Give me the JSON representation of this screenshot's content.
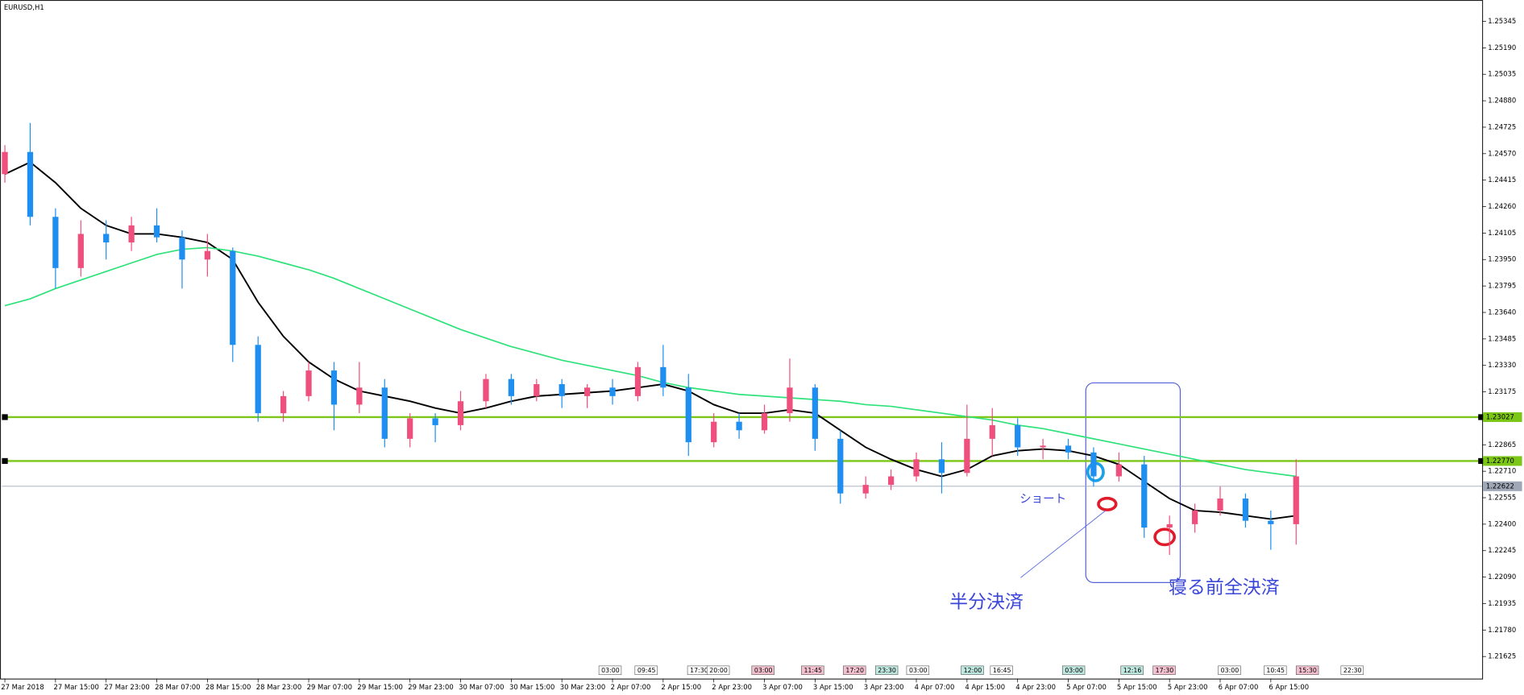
{
  "chart_data": {
    "type": "candlestick",
    "title": "EURUSD,H1",
    "categories": [
      "27 Mar 2018",
      null,
      "27 Mar 15:00",
      null,
      "27 Mar 23:00",
      null,
      "28 Mar 07:00",
      null,
      "28 Mar 15:00",
      null,
      "28 Mar 23:00",
      null,
      "29 Mar 07:00",
      null,
      "29 Mar 15:00",
      null,
      "29 Mar 23:00",
      null,
      "30 Mar 07:00",
      null,
      "30 Mar 15:00",
      null,
      "30 Mar 23:00",
      null,
      "2 Apr 07:00",
      null,
      "2 Apr 15:00",
      null,
      "2 Apr 23:00",
      null,
      "3 Apr 07:00",
      null,
      "3 Apr 15:00",
      null,
      "3 Apr 23:00",
      null,
      "4 Apr 07:00",
      null,
      "4 Apr 15:00",
      null,
      "4 Apr 23:00",
      null,
      "5 Apr 07:00",
      null,
      "5 Apr 15:00",
      null,
      "5 Apr 23:00",
      null,
      "6 Apr 07:00",
      null,
      "6 Apr 15:00",
      null
    ],
    "open": [
      1.2445,
      1.2458,
      1.242,
      1.239,
      1.241,
      1.2405,
      1.2415,
      1.2408,
      1.2395,
      1.24,
      1.2345,
      1.2305,
      1.2315,
      1.233,
      1.231,
      1.232,
      1.229,
      1.2302,
      1.2298,
      1.2312,
      1.2325,
      1.2315,
      1.2322,
      1.2315,
      1.232,
      1.2315,
      1.2332,
      1.232,
      1.2288,
      1.23,
      1.2295,
      1.2305,
      1.232,
      1.229,
      1.2258,
      1.2263,
      1.2268,
      1.2278,
      1.227,
      1.229,
      1.2298,
      1.2285,
      1.2286,
      1.2282,
      1.2268,
      1.2275,
      1.2238,
      1.224,
      1.2248,
      1.2255,
      1.2242,
      1.224
    ],
    "high": [
      1.2462,
      1.2475,
      1.2425,
      1.2418,
      1.2418,
      1.242,
      1.2425,
      1.2412,
      1.241,
      1.2402,
      1.235,
      1.2318,
      1.2335,
      1.2335,
      1.2335,
      1.2325,
      1.2305,
      1.2305,
      1.2318,
      1.2328,
      1.2328,
      1.2325,
      1.2325,
      1.2322,
      1.2325,
      1.2335,
      1.2345,
      1.2328,
      1.2305,
      1.2305,
      1.231,
      1.2337,
      1.2322,
      1.2295,
      1.2268,
      1.2272,
      1.2282,
      1.2288,
      1.231,
      1.2308,
      1.2302,
      1.229,
      1.229,
      1.2285,
      1.2282,
      1.228,
      1.2245,
      1.2252,
      1.2262,
      1.2258,
      1.2248,
      1.2278
    ],
    "low": [
      1.244,
      1.2415,
      1.2378,
      1.2385,
      1.2395,
      1.24,
      1.2405,
      1.2378,
      1.2385,
      1.2335,
      1.23,
      1.23,
      1.2312,
      1.2295,
      1.2305,
      1.2285,
      1.2285,
      1.2288,
      1.2295,
      1.2308,
      1.231,
      1.2312,
      1.2308,
      1.2308,
      1.231,
      1.2312,
      1.2315,
      1.228,
      1.2285,
      1.229,
      1.2293,
      1.23,
      1.2283,
      1.2252,
      1.2255,
      1.226,
      1.2265,
      1.2258,
      1.2268,
      1.228,
      1.228,
      1.2278,
      1.2278,
      1.2262,
      1.2265,
      1.2232,
      1.2222,
      1.2235,
      1.2245,
      1.2238,
      1.2225,
      1.2228
    ],
    "close": [
      1.2458,
      1.242,
      1.239,
      1.241,
      1.2405,
      1.2415,
      1.2408,
      1.2395,
      1.24,
      1.2345,
      1.2305,
      1.2315,
      1.233,
      1.231,
      1.232,
      1.229,
      1.2302,
      1.2298,
      1.2312,
      1.2325,
      1.2315,
      1.2322,
      1.2315,
      1.232,
      1.2315,
      1.2332,
      1.232,
      1.2288,
      1.23,
      1.2295,
      1.2305,
      1.232,
      1.229,
      1.2258,
      1.2263,
      1.2268,
      1.2278,
      1.227,
      1.229,
      1.2298,
      1.2285,
      1.2286,
      1.2282,
      1.2268,
      1.2275,
      1.2238,
      1.224,
      1.2248,
      1.2255,
      1.2242,
      1.224,
      1.2268
    ],
    "up_color": "#ef4f7c",
    "down_color": "#1e8ff0",
    "lines": [
      {
        "color": "#000000",
        "values": [
          1.2445,
          1.2452,
          1.244,
          1.2425,
          1.2415,
          1.241,
          1.241,
          1.2408,
          1.2405,
          1.2395,
          1.237,
          1.235,
          1.2335,
          1.2325,
          1.2318,
          1.2315,
          1.2312,
          1.2308,
          1.2305,
          1.2308,
          1.2312,
          1.2315,
          1.2316,
          1.2317,
          1.2318,
          1.232,
          1.2322,
          1.2318,
          1.231,
          1.2305,
          1.2305,
          1.2307,
          1.2305,
          1.2295,
          1.2285,
          1.2278,
          1.2272,
          1.2268,
          1.2272,
          1.228,
          1.2283,
          1.2284,
          1.2283,
          1.228,
          1.2275,
          1.2265,
          1.2255,
          1.2248,
          1.2247,
          1.2245,
          1.2243,
          1.2245
        ]
      },
      {
        "color": "#2ee27a",
        "values": [
          1.2368,
          1.2372,
          1.2378,
          1.2383,
          1.2388,
          1.2393,
          1.2398,
          1.2401,
          1.2402,
          1.24,
          1.2397,
          1.2393,
          1.2389,
          1.2384,
          1.2378,
          1.2372,
          1.2366,
          1.236,
          1.2354,
          1.2349,
          1.2344,
          1.234,
          1.2336,
          1.2333,
          1.233,
          1.2327,
          1.2323,
          1.232,
          1.2318,
          1.2316,
          1.2315,
          1.2314,
          1.2313,
          1.2312,
          1.231,
          1.2309,
          1.2307,
          1.2305,
          1.2303,
          1.2301,
          1.2298,
          1.2296,
          1.2293,
          1.229,
          1.2287,
          1.2284,
          1.2281,
          1.2278,
          1.2275,
          1.2272,
          1.227,
          1.2268
        ]
      }
    ],
    "hlines": [
      {
        "value": 1.23027,
        "label": "1.23027",
        "color": "#7cc618"
      },
      {
        "value": 1.2277,
        "label": "1.22770",
        "color": "#7cc618"
      },
      {
        "value": 1.22622,
        "label": "1.22622",
        "color": "#a0a8b8"
      }
    ],
    "ylim": [
      1.21496,
      1.2547
    ],
    "yticks": [
      1.25345,
      {
        "value": 1.2519,
        "label": "1.25190"
      },
      1.25035,
      {
        "value": 1.2488,
        "label": "1.24880"
      },
      1.24725,
      {
        "value": 1.2457,
        "label": "1.24570"
      },
      1.24415,
      {
        "value": 1.2426,
        "label": "1.24260"
      },
      1.24105,
      {
        "value": 1.2395,
        "label": "1.23950"
      },
      1.23795,
      {
        "value": 1.2364,
        "label": "1.23640"
      },
      1.23485,
      {
        "value": 1.2333,
        "label": "1.23330"
      },
      1.23175,
      1.22865,
      {
        "value": 1.2271,
        "label": "1.22710"
      },
      1.22555,
      {
        "value": 1.224,
        "label": "1.22400"
      },
      1.22245,
      {
        "value": 1.2209,
        "label": "1.22090"
      },
      1.21935,
      {
        "value": 1.2178,
        "label": "1.21780"
      },
      1.21625
    ],
    "time_markers": [
      {
        "label": "03:00",
        "color": "#ffffff"
      },
      {
        "label": "09:45",
        "color": "#ffffff"
      },
      {
        "label": "17:30",
        "color": "#ffffff"
      },
      {
        "label": "20:00",
        "color": "#ffffff"
      },
      {
        "label": "03:00",
        "color": "#f3c1cf"
      },
      {
        "label": "11:45",
        "color": "#f3c1cf"
      },
      {
        "label": "17:20",
        "color": "#f3c1cf"
      },
      {
        "label": "23:30",
        "color": "#bfe8e0"
      },
      {
        "label": "03:00",
        "color": "#ffffff"
      },
      {
        "label": "12:00",
        "color": "#bfe8e0"
      },
      {
        "label": "16:45",
        "color": "#ffffff"
      },
      {
        "label": "03:00",
        "color": "#bfe8e0"
      },
      {
        "label": "12:16",
        "color": "#bfe8e0"
      },
      {
        "label": "17:30",
        "color": "#f3c1cf"
      },
      {
        "label": "03:00",
        "color": "#ffffff"
      },
      {
        "label": "10:45",
        "color": "#ffffff"
      },
      {
        "label": "15:30",
        "color": "#f3c1cf"
      },
      {
        "label": "22:30",
        "color": "#ffffff"
      }
    ],
    "annotations": [
      "ショート",
      "半分決済",
      "寝る前全決済"
    ]
  }
}
